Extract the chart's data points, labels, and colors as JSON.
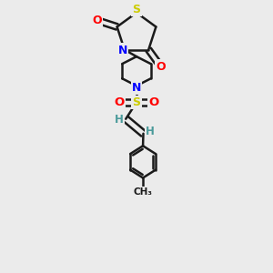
{
  "bg_color": "#ebebeb",
  "bond_color": "#1a1a1a",
  "S_color": "#cccc00",
  "N_color": "#0000ff",
  "O_color": "#ff0000",
  "H_color": "#4a9a9a",
  "line_width": 1.8,
  "figsize": [
    3.0,
    3.0
  ],
  "dpi": 100,
  "xlim": [
    0,
    10
  ],
  "ylim": [
    0,
    14
  ]
}
